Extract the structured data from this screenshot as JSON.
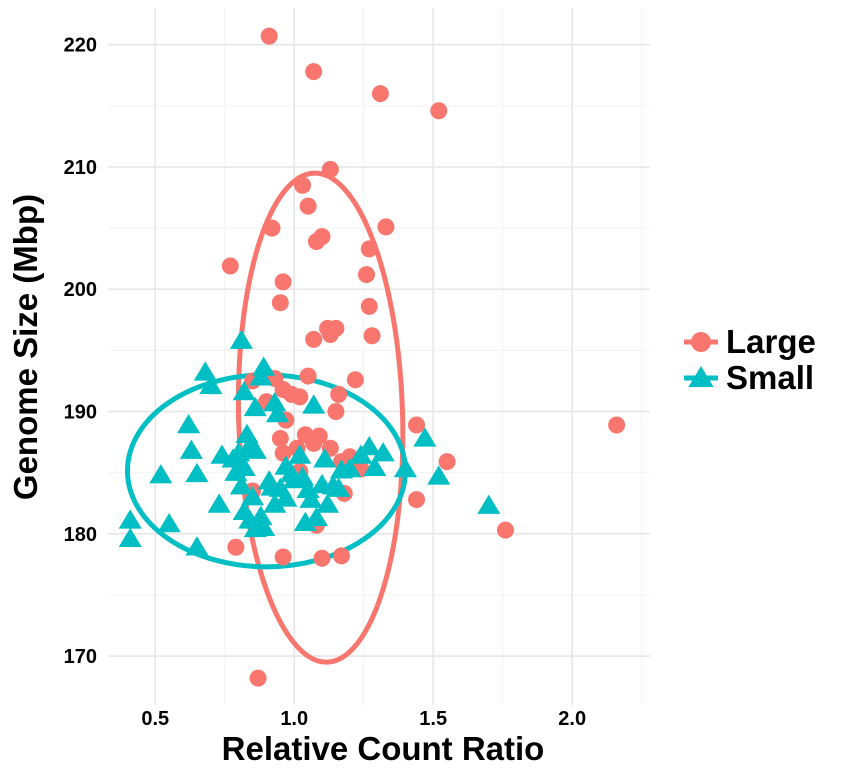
{
  "chart_data": {
    "type": "scatter",
    "xlabel": "Relative Count Ratio",
    "ylabel": "Genome Size (Mbp)",
    "xlim": [
      0.33,
      2.28
    ],
    "ylim": [
      166,
      223
    ],
    "xticks": [
      0.5,
      1.0,
      1.5,
      2.0
    ],
    "xtick_labels": [
      "0.5",
      "1.0",
      "1.5",
      "2.0"
    ],
    "yticks": [
      170,
      180,
      190,
      200,
      210,
      220
    ],
    "ytick_labels": [
      "170",
      "180",
      "190",
      "200",
      "210",
      "220"
    ],
    "grid": true,
    "legend": "right",
    "series": [
      {
        "name": "Large",
        "color": "#F8766D",
        "marker": "circle",
        "points": [
          [
            0.91,
            220.7
          ],
          [
            1.07,
            217.8
          ],
          [
            1.31,
            216.0
          ],
          [
            1.52,
            214.6
          ],
          [
            1.13,
            209.8
          ],
          [
            1.03,
            208.5
          ],
          [
            1.05,
            206.8
          ],
          [
            0.92,
            205.0
          ],
          [
            1.1,
            204.3
          ],
          [
            1.08,
            203.9
          ],
          [
            1.33,
            205.1
          ],
          [
            1.27,
            203.3
          ],
          [
            0.77,
            201.9
          ],
          [
            0.96,
            200.6
          ],
          [
            1.26,
            201.2
          ],
          [
            0.95,
            198.9
          ],
          [
            1.27,
            198.6
          ],
          [
            1.12,
            196.8
          ],
          [
            1.15,
            196.8
          ],
          [
            1.13,
            196.3
          ],
          [
            1.07,
            195.9
          ],
          [
            1.28,
            196.2
          ],
          [
            0.85,
            192.5
          ],
          [
            0.93,
            192.7
          ],
          [
            1.05,
            192.9
          ],
          [
            1.22,
            192.6
          ],
          [
            0.96,
            191.8
          ],
          [
            0.99,
            191.4
          ],
          [
            1.02,
            191.2
          ],
          [
            0.9,
            190.8
          ],
          [
            1.16,
            191.4
          ],
          [
            0.97,
            189.3
          ],
          [
            1.15,
            190.0
          ],
          [
            1.44,
            188.9
          ],
          [
            0.95,
            187.8
          ],
          [
            1.04,
            188.1
          ],
          [
            1.09,
            188.0
          ],
          [
            1.07,
            187.4
          ],
          [
            1.13,
            187.0
          ],
          [
            1.01,
            187.0
          ],
          [
            0.96,
            186.6
          ],
          [
            1.2,
            186.3
          ],
          [
            1.24,
            185.3
          ],
          [
            1.17,
            185.9
          ],
          [
            1.55,
            185.9
          ],
          [
            1.02,
            185.1
          ],
          [
            0.85,
            183.5
          ],
          [
            1.18,
            183.3
          ],
          [
            1.44,
            182.8
          ],
          [
            1.08,
            180.7
          ],
          [
            2.16,
            188.9
          ],
          [
            1.76,
            180.3
          ],
          [
            0.79,
            178.9
          ],
          [
            0.96,
            178.1
          ],
          [
            1.1,
            178.0
          ],
          [
            1.17,
            178.2
          ],
          [
            0.87,
            168.2
          ]
        ],
        "ellipse": {
          "center": [
            1.095,
            189.5
          ],
          "semi_x": 0.295,
          "semi_y": 20.0,
          "tilt_deg": -1.5
        }
      },
      {
        "name": "Small",
        "color": "#00BFC4",
        "marker": "triangle",
        "points": [
          [
            0.41,
            181.1
          ],
          [
            0.41,
            179.6
          ],
          [
            0.52,
            184.8
          ],
          [
            0.55,
            180.8
          ],
          [
            0.62,
            188.9
          ],
          [
            0.63,
            186.8
          ],
          [
            0.65,
            178.9
          ],
          [
            0.65,
            184.9
          ],
          [
            0.68,
            193.2
          ],
          [
            0.7,
            192.1
          ],
          [
            0.73,
            182.4
          ],
          [
            0.74,
            186.4
          ],
          [
            0.78,
            186.1
          ],
          [
            0.79,
            185.0
          ],
          [
            0.81,
            195.8
          ],
          [
            0.82,
            191.6
          ],
          [
            0.83,
            188.1
          ],
          [
            0.84,
            187.2
          ],
          [
            0.8,
            186.6
          ],
          [
            0.82,
            185.4
          ],
          [
            0.86,
            186.8
          ],
          [
            0.88,
            192.8
          ],
          [
            0.86,
            190.3
          ],
          [
            0.89,
            193.6
          ],
          [
            0.93,
            190.7
          ],
          [
            0.94,
            189.8
          ],
          [
            0.81,
            183.9
          ],
          [
            0.82,
            181.8
          ],
          [
            0.84,
            181.1
          ],
          [
            0.85,
            183.0
          ],
          [
            0.86,
            180.4
          ],
          [
            0.88,
            181.4
          ],
          [
            0.89,
            180.5
          ],
          [
            0.91,
            184.3
          ],
          [
            0.92,
            183.8
          ],
          [
            0.93,
            182.4
          ],
          [
            0.95,
            183.7
          ],
          [
            0.97,
            182.9
          ],
          [
            0.99,
            184.9
          ],
          [
            1.02,
            186.4
          ],
          [
            1.03,
            184.6
          ],
          [
            1.05,
            183.6
          ],
          [
            1.06,
            182.8
          ],
          [
            1.08,
            181.3
          ],
          [
            1.1,
            184.0
          ],
          [
            1.11,
            186.1
          ],
          [
            1.14,
            183.9
          ],
          [
            1.16,
            183.7
          ],
          [
            1.2,
            185.3
          ],
          [
            1.07,
            190.5
          ],
          [
            1.17,
            185.2
          ],
          [
            1.24,
            186.4
          ],
          [
            1.27,
            187.1
          ],
          [
            1.29,
            185.4
          ],
          [
            1.32,
            186.6
          ],
          [
            1.4,
            185.3
          ],
          [
            1.47,
            187.8
          ],
          [
            1.52,
            184.7
          ],
          [
            1.7,
            182.3
          ],
          [
            1.04,
            180.9
          ],
          [
            1.12,
            182.4
          ],
          [
            0.97,
            185.5
          ],
          [
            1.0,
            184.4
          ]
        ],
        "ellipse": {
          "center": [
            0.9,
            185.15
          ],
          "semi_x": 0.5,
          "semi_y": 7.85,
          "tilt_deg": 0
        }
      }
    ]
  }
}
